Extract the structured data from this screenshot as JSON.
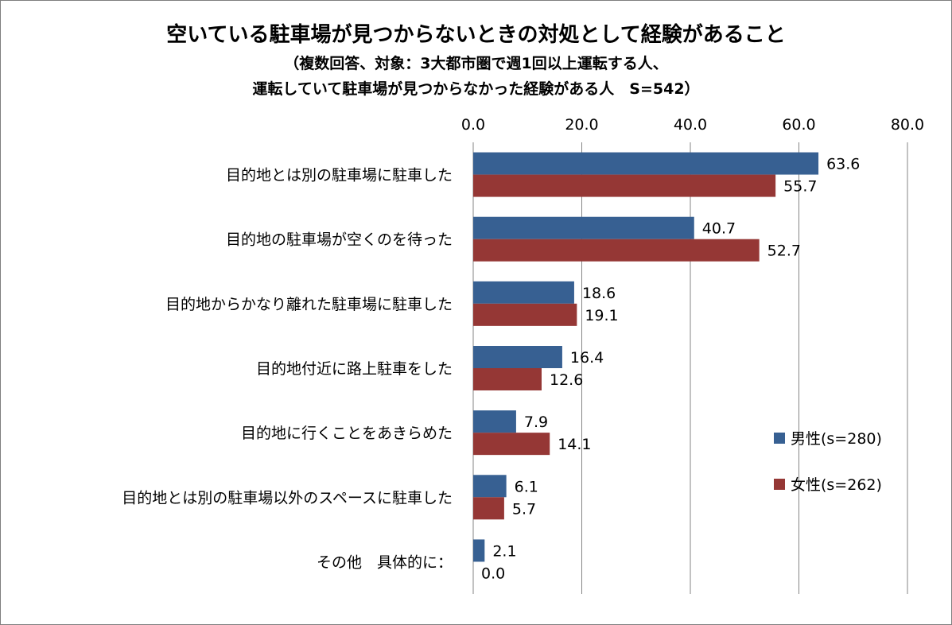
{
  "chart_data": {
    "type": "bar",
    "orientation": "horizontal",
    "title": "空いている駐車場が見つからないときの対処として経験があること",
    "subtitle_line1": "（複数回答、対象：3大都市圏で週1回以上運転する人、",
    "subtitle_line2": "運転していて駐車場が見つからなかった経験がある人　S=542）",
    "categories": [
      "目的地とは別の駐車場に駐車した",
      "目的地の駐車場が空くのを待った",
      "目的地からかなり離れた駐車場に駐車した",
      "目的地付近に路上駐車をした",
      "目的地に行くことをあきらめた",
      "目的地とは別の駐車場以外のスペースに駐車した",
      "その他　具体的に："
    ],
    "series": [
      {
        "name": "男性(s=280)",
        "color": "#376092",
        "values": [
          63.6,
          40.7,
          18.6,
          16.4,
          7.9,
          6.1,
          2.1
        ]
      },
      {
        "name": "女性(s=262)",
        "color": "#953735",
        "values": [
          55.7,
          52.7,
          19.1,
          12.6,
          14.1,
          5.7,
          0.0
        ]
      }
    ],
    "x_ticks": [
      "0.0",
      "20.0",
      "40.0",
      "60.0",
      "80.0"
    ],
    "xlim": [
      0,
      80
    ],
    "x_axis_position": "top",
    "grid": "vertical",
    "legend_position": "right"
  }
}
